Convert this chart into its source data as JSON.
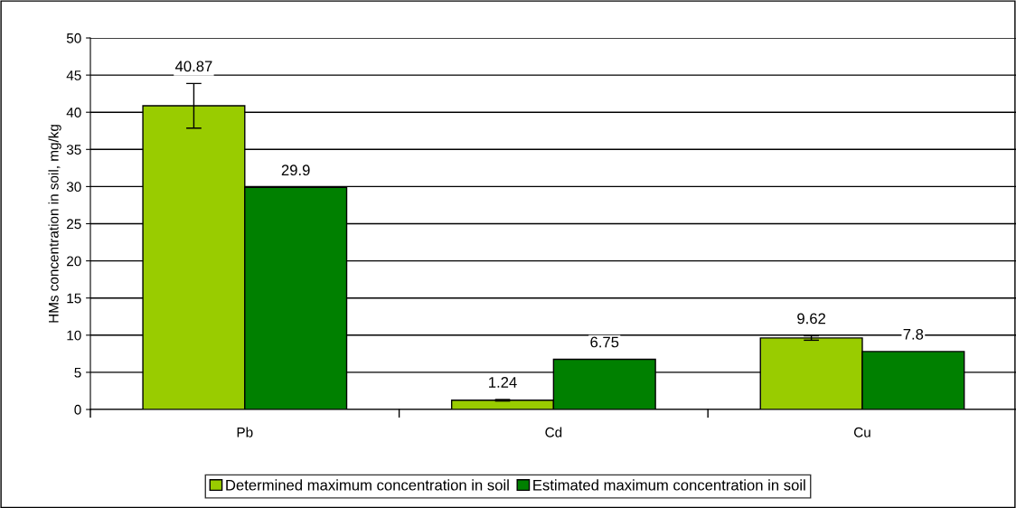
{
  "chart_data": {
    "type": "bar",
    "ylabel": "HMs concentration in soil, mg/kg",
    "categories": [
      "Pb",
      "Cd",
      "Cu"
    ],
    "series": [
      {
        "name": "Determined maximum concentration in soil",
        "color": "#99cc00",
        "values": [
          40.87,
          1.24,
          9.62
        ],
        "errors": [
          3,
          0.1,
          0.3
        ]
      },
      {
        "name": "Estimated maximum concentration in soil",
        "color": "#008000",
        "values": [
          29.9,
          6.75,
          7.8
        ]
      }
    ],
    "ylim": [
      0,
      50
    ],
    "yticks": [
      0,
      5,
      10,
      15,
      20,
      25,
      30,
      35,
      40,
      45,
      50
    ],
    "grid": "y",
    "legend": "bottom",
    "data_labels": true
  }
}
